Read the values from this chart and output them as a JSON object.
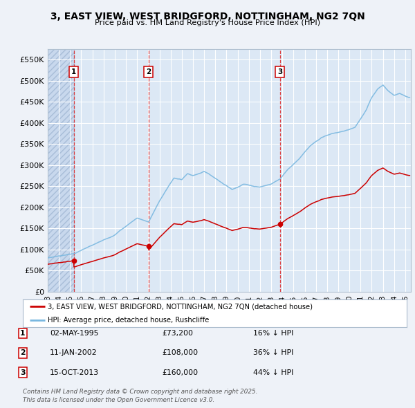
{
  "title1": "3, EAST VIEW, WEST BRIDGFORD, NOTTINGHAM, NG2 7QN",
  "title2": "Price paid vs. HM Land Registry's House Price Index (HPI)",
  "bg_color": "#eef2f8",
  "plot_bg_color": "#dce8f5",
  "grid_color": "#ffffff",
  "sale_years_num": [
    1995.33,
    2002.03,
    2013.79
  ],
  "sale_prices": [
    73200,
    108000,
    160000
  ],
  "sale_labels": [
    "1",
    "2",
    "3"
  ],
  "legend_entries": [
    "3, EAST VIEW, WEST BRIDGFORD, NOTTINGHAM, NG2 7QN (detached house)",
    "HPI: Average price, detached house, Rushcliffe"
  ],
  "table_rows": [
    [
      "1",
      "02-MAY-1995",
      "£73,200",
      "16% ↓ HPI"
    ],
    [
      "2",
      "11-JAN-2002",
      "£108,000",
      "36% ↓ HPI"
    ],
    [
      "3",
      "15-OCT-2013",
      "£160,000",
      "44% ↓ HPI"
    ]
  ],
  "footer": "Contains HM Land Registry data © Crown copyright and database right 2025.\nThis data is licensed under the Open Government Licence v3.0.",
  "ylim": [
    0,
    575000
  ],
  "yticks": [
    0,
    50000,
    100000,
    150000,
    200000,
    250000,
    300000,
    350000,
    400000,
    450000,
    500000,
    550000
  ],
  "ytick_labels": [
    "£0",
    "£50K",
    "£100K",
    "£150K",
    "£200K",
    "£250K",
    "£300K",
    "£350K",
    "£400K",
    "£450K",
    "£500K",
    "£550K"
  ],
  "red_line_color": "#cc0000",
  "blue_line_color": "#7ab8e0",
  "xmin": 1993,
  "xmax": 2025.5,
  "hatch_end": 1995.33
}
